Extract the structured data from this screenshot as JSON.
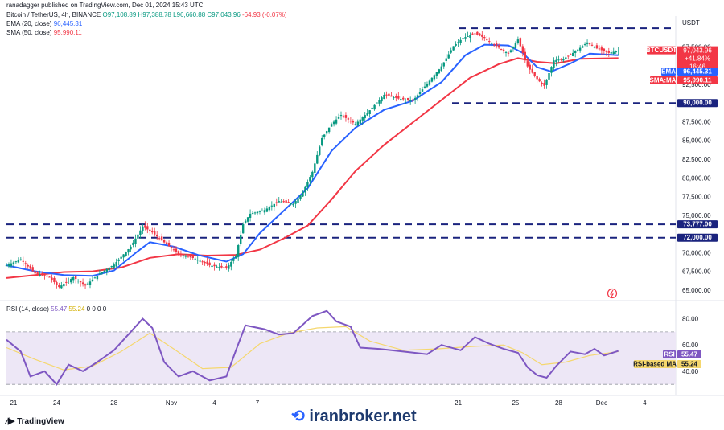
{
  "header": {
    "author": "ranadagger published on TradingView.com, Dec 01, 2024 15:43 UTC",
    "symbol": "Bitcoin / TetherUS, 4h, BINANCE",
    "open": "O97,108.89",
    "high": "H97,388.78",
    "low": "L96,660.88",
    "close": "C97,043.96",
    "change": "-64.93 (-0.07%)",
    "ema_label": "EMA (20, close)",
    "ema_value": "96,445.31",
    "sma_label": "SMA (50, close)",
    "sma_value": "95,990.11",
    "currency": "USDT"
  },
  "colors": {
    "up": "#089981",
    "down": "#f23645",
    "ema": "#2962ff",
    "sma": "#f23645",
    "rsi": "#7e57c2",
    "rsi_ma": "#f5d76e",
    "levels": "#1a237e",
    "rsi_band": "#ede7f6"
  },
  "price_tags": {
    "symbol": "BTCUSDT",
    "price": "97,043.96",
    "pct": "+41.84%",
    "timer": "16:46",
    "ema_name": "EMA",
    "ema": "96,445.31",
    "sma_name": "SMA:MA",
    "sma": "95,990.11"
  },
  "levels": {
    "top": 100000,
    "mid": 90000,
    "mid_label": "90,000.00",
    "l1": 73777,
    "l1_label": "73,777.00",
    "l2": 72000,
    "l2_label": "72,000.00"
  },
  "rsi_tags": {
    "rsi_name": "RSI",
    "rsi": "55.47",
    "ma_name": "RSI-based MA",
    "ma": "55.24"
  },
  "chart_data": {
    "type": "line",
    "price_axis_labels": [
      "97,500.00",
      "92,500.00",
      "87,500.00",
      "85,000.00",
      "82,500.00",
      "80,000.00",
      "77,500.00",
      "75,000.00",
      "70,000.00",
      "67,500.00",
      "65,000.00"
    ],
    "price_axis_values": [
      97500,
      92500,
      87500,
      85000,
      82500,
      80000,
      77500,
      75000,
      70000,
      67500,
      65000
    ],
    "ylim": [
      63800,
      101200
    ],
    "x_ticks": [
      {
        "label": "21",
        "t": 3
      },
      {
        "label": "24",
        "t": 21
      },
      {
        "label": "28",
        "t": 45
      },
      {
        "label": "Nov",
        "t": 69
      },
      {
        "label": "4",
        "t": 87
      },
      {
        "label": "7",
        "t": 105
      },
      {
        "label": "21",
        "t": 189
      },
      {
        "label": "25",
        "t": 213
      },
      {
        "label": "28",
        "t": 231
      },
      {
        "label": "Dec",
        "t": 249
      },
      {
        "label": "4",
        "t": 267
      }
    ],
    "t_range": [
      0,
      280
    ],
    "series": [
      {
        "name": "BTCUSDT",
        "points": [
          [
            0,
            68300
          ],
          [
            6,
            69100
          ],
          [
            12,
            67200
          ],
          [
            18,
            66700
          ],
          [
            22,
            65400
          ],
          [
            28,
            66700
          ],
          [
            33,
            65600
          ],
          [
            39,
            67200
          ],
          [
            45,
            68400
          ],
          [
            52,
            70800
          ],
          [
            57,
            73500
          ],
          [
            61,
            72700
          ],
          [
            67,
            71100
          ],
          [
            72,
            69800
          ],
          [
            79,
            69200
          ],
          [
            85,
            68300
          ],
          [
            92,
            67900
          ],
          [
            96,
            69600
          ],
          [
            99,
            73800
          ],
          [
            102,
            75200
          ],
          [
            108,
            75700
          ],
          [
            114,
            76900
          ],
          [
            120,
            76500
          ],
          [
            124,
            78100
          ],
          [
            128,
            80800
          ],
          [
            132,
            85300
          ],
          [
            136,
            87200
          ],
          [
            140,
            88400
          ],
          [
            146,
            87200
          ],
          [
            151,
            88700
          ],
          [
            158,
            91100
          ],
          [
            164,
            90600
          ],
          [
            170,
            90300
          ],
          [
            176,
            92600
          ],
          [
            182,
            94900
          ],
          [
            187,
            97600
          ],
          [
            191,
            98700
          ],
          [
            196,
            99300
          ],
          [
            200,
            98700
          ],
          [
            204,
            97800
          ],
          [
            210,
            96600
          ],
          [
            214,
            98500
          ],
          [
            218,
            94900
          ],
          [
            222,
            93200
          ],
          [
            225,
            92300
          ],
          [
            229,
            95700
          ],
          [
            233,
            95900
          ],
          [
            238,
            96900
          ],
          [
            243,
            98100
          ],
          [
            247,
            97300
          ],
          [
            252,
            96700
          ],
          [
            256,
            97000
          ]
        ]
      },
      {
        "name": "EMA",
        "points": [
          [
            0,
            68300
          ],
          [
            12,
            67500
          ],
          [
            24,
            67000
          ],
          [
            36,
            66900
          ],
          [
            45,
            67600
          ],
          [
            55,
            70200
          ],
          [
            60,
            71400
          ],
          [
            70,
            70800
          ],
          [
            80,
            69700
          ],
          [
            92,
            68800
          ],
          [
            99,
            69800
          ],
          [
            106,
            72600
          ],
          [
            116,
            75600
          ],
          [
            126,
            78600
          ],
          [
            136,
            83600
          ],
          [
            146,
            86700
          ],
          [
            158,
            89100
          ],
          [
            170,
            90300
          ],
          [
            182,
            92800
          ],
          [
            192,
            96400
          ],
          [
            200,
            97800
          ],
          [
            210,
            97700
          ],
          [
            216,
            96700
          ],
          [
            222,
            94800
          ],
          [
            228,
            94200
          ],
          [
            236,
            95300
          ],
          [
            244,
            96600
          ],
          [
            256,
            96400
          ]
        ]
      },
      {
        "name": "SMA",
        "points": [
          [
            0,
            66600
          ],
          [
            12,
            67000
          ],
          [
            24,
            67400
          ],
          [
            36,
            67500
          ],
          [
            48,
            68000
          ],
          [
            60,
            69300
          ],
          [
            72,
            69800
          ],
          [
            84,
            69600
          ],
          [
            96,
            69700
          ],
          [
            106,
            70400
          ],
          [
            116,
            71900
          ],
          [
            126,
            73600
          ],
          [
            136,
            77100
          ],
          [
            146,
            80900
          ],
          [
            158,
            84400
          ],
          [
            170,
            87400
          ],
          [
            182,
            90400
          ],
          [
            194,
            93400
          ],
          [
            206,
            95200
          ],
          [
            214,
            96000
          ],
          [
            222,
            95500
          ],
          [
            230,
            95300
          ],
          [
            240,
            95900
          ],
          [
            256,
            96000
          ]
        ]
      }
    ],
    "rsi": {
      "name": "RSI (14, close)",
      "value": "55.47",
      "ma_value": "55.24",
      "extra": "0 0 0 0",
      "axis_labels": [
        "80.00",
        "60.00",
        "40.00"
      ],
      "axis_values": [
        80,
        60,
        40
      ],
      "ylim": [
        24,
        92
      ],
      "bands": [
        30,
        70
      ],
      "rsi_points": [
        [
          0,
          64
        ],
        [
          6,
          55
        ],
        [
          10,
          36
        ],
        [
          16,
          40
        ],
        [
          21,
          30
        ],
        [
          26,
          45
        ],
        [
          32,
          40
        ],
        [
          38,
          47
        ],
        [
          45,
          56
        ],
        [
          52,
          70
        ],
        [
          57,
          80
        ],
        [
          61,
          73
        ],
        [
          66,
          47
        ],
        [
          72,
          36
        ],
        [
          78,
          40
        ],
        [
          85,
          33
        ],
        [
          92,
          36
        ],
        [
          96,
          56
        ],
        [
          100,
          75
        ],
        [
          108,
          72
        ],
        [
          114,
          68
        ],
        [
          120,
          69
        ],
        [
          128,
          82
        ],
        [
          134,
          86
        ],
        [
          138,
          78
        ],
        [
          144,
          74
        ],
        [
          148,
          58
        ],
        [
          156,
          57
        ],
        [
          166,
          55
        ],
        [
          176,
          53
        ],
        [
          182,
          60
        ],
        [
          190,
          56
        ],
        [
          196,
          66
        ],
        [
          202,
          61
        ],
        [
          208,
          57
        ],
        [
          214,
          54
        ],
        [
          218,
          43
        ],
        [
          222,
          37
        ],
        [
          226,
          35
        ],
        [
          230,
          44
        ],
        [
          236,
          55
        ],
        [
          242,
          53
        ],
        [
          246,
          57
        ],
        [
          250,
          52
        ],
        [
          256,
          55.5
        ]
      ],
      "ma_points": [
        [
          0,
          58
        ],
        [
          12,
          49
        ],
        [
          24,
          41
        ],
        [
          36,
          44
        ],
        [
          48,
          55
        ],
        [
          60,
          69
        ],
        [
          70,
          57
        ],
        [
          82,
          42
        ],
        [
          94,
          43
        ],
        [
          106,
          61
        ],
        [
          118,
          69
        ],
        [
          130,
          73
        ],
        [
          142,
          74
        ],
        [
          152,
          63
        ],
        [
          166,
          56
        ],
        [
          180,
          57
        ],
        [
          196,
          59
        ],
        [
          208,
          60
        ],
        [
          216,
          54
        ],
        [
          224,
          45
        ],
        [
          234,
          47
        ],
        [
          244,
          52
        ],
        [
          256,
          55
        ]
      ]
    }
  },
  "footer": {
    "tv": "TradingView",
    "watermark": "iranbroker.net"
  }
}
